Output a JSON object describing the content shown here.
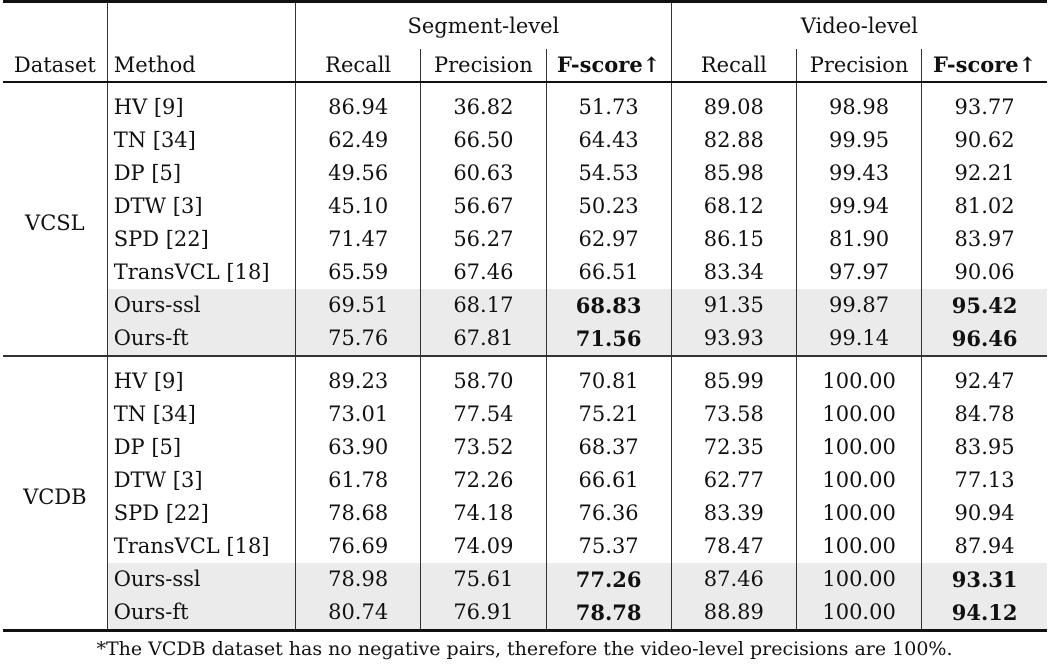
{
  "table": {
    "headers": {
      "dataset": "Dataset",
      "method": "Method",
      "groups": [
        {
          "label": "Segment-level",
          "columns": [
            "Recall",
            "Precision",
            "F-score↑"
          ]
        },
        {
          "label": "Video-level",
          "columns": [
            "Recall",
            "Precision",
            "F-score↑"
          ]
        }
      ]
    },
    "sections": [
      {
        "dataset": "VCSL",
        "rows": [
          {
            "method": "HV [9]",
            "values": [
              "86.94",
              "36.82",
              "51.73",
              "89.08",
              "98.98",
              "93.77"
            ],
            "highlight": false
          },
          {
            "method": "TN [34]",
            "values": [
              "62.49",
              "66.50",
              "64.43",
              "82.88",
              "99.95",
              "90.62"
            ],
            "highlight": false
          },
          {
            "method": "DP [5]",
            "values": [
              "49.56",
              "60.63",
              "54.53",
              "85.98",
              "99.43",
              "92.21"
            ],
            "highlight": false
          },
          {
            "method": "DTW [3]",
            "values": [
              "45.10",
              "56.67",
              "50.23",
              "68.12",
              "99.94",
              "81.02"
            ],
            "highlight": false
          },
          {
            "method": "SPD [22]",
            "values": [
              "71.47",
              "56.27",
              "62.97",
              "86.15",
              "81.90",
              "83.97"
            ],
            "highlight": false
          },
          {
            "method": "TransVCL [18]",
            "values": [
              "65.59",
              "67.46",
              "66.51",
              "83.34",
              "97.97",
              "90.06"
            ],
            "highlight": false
          },
          {
            "method": "Ours-ssl",
            "values": [
              "69.51",
              "68.17",
              "68.83",
              "91.35",
              "99.87",
              "95.42"
            ],
            "highlight": true
          },
          {
            "method": "Ours-ft",
            "values": [
              "75.76",
              "67.81",
              "71.56",
              "93.93",
              "99.14",
              "96.46"
            ],
            "highlight": true
          }
        ]
      },
      {
        "dataset": "VCDB",
        "rows": [
          {
            "method": "HV [9]",
            "values": [
              "89.23",
              "58.70",
              "70.81",
              "85.99",
              "100.00",
              "92.47"
            ],
            "highlight": false
          },
          {
            "method": "TN [34]",
            "values": [
              "73.01",
              "77.54",
              "75.21",
              "73.58",
              "100.00",
              "84.78"
            ],
            "highlight": false
          },
          {
            "method": "DP [5]",
            "values": [
              "63.90",
              "73.52",
              "68.37",
              "72.35",
              "100.00",
              "83.95"
            ],
            "highlight": false
          },
          {
            "method": "DTW [3]",
            "values": [
              "61.78",
              "72.26",
              "66.61",
              "62.77",
              "100.00",
              "77.13"
            ],
            "highlight": false
          },
          {
            "method": "SPD [22]",
            "values": [
              "78.68",
              "74.18",
              "76.36",
              "83.39",
              "100.00",
              "90.94"
            ],
            "highlight": false
          },
          {
            "method": "TransVCL [18]",
            "values": [
              "76.69",
              "74.09",
              "75.37",
              "78.47",
              "100.00",
              "87.94"
            ],
            "highlight": false
          },
          {
            "method": "Ours-ssl",
            "values": [
              "78.98",
              "75.61",
              "77.26",
              "87.46",
              "100.00",
              "93.31"
            ],
            "highlight": true
          },
          {
            "method": "Ours-ft",
            "values": [
              "80.74",
              "76.91",
              "78.78",
              "88.89",
              "100.00",
              "94.12"
            ],
            "highlight": true
          }
        ]
      }
    ],
    "footnote": "*The VCDB dataset has no negative pairs, therefore the video-level precisions are 100%.",
    "highlight_color": "#ebebeb"
  }
}
